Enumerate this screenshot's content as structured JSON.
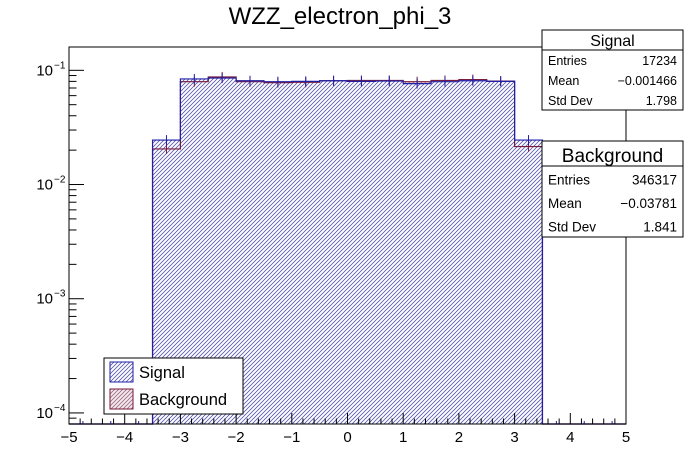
{
  "chart_data": {
    "type": "histogram",
    "title": "WZZ_electron_phi_3",
    "xlabel": "",
    "ylabel": "",
    "xlim": [
      -5,
      5
    ],
    "ylim": [
      8e-05,
      0.16
    ],
    "y_scale": "log",
    "bin_edges": [
      -5,
      -4.5,
      -4,
      -3.5,
      -3,
      -2.5,
      -2,
      -1.5,
      -1,
      -0.5,
      0,
      0.5,
      1,
      1.5,
      2,
      2.5,
      3,
      3.5,
      4,
      4.5,
      5
    ],
    "x_ticks": [
      -5,
      -4,
      -3,
      -2,
      -1,
      0,
      1,
      2,
      3,
      4,
      5
    ],
    "x_tick_labels": [
      "−5",
      "−4",
      "−3",
      "−2",
      "−1",
      "0",
      "1",
      "2",
      "3",
      "4",
      "5"
    ],
    "y_ticks": [
      0.0001,
      0.001,
      0.01,
      0.1
    ],
    "y_tick_labels": [
      {
        "base": "10",
        "exp": "−4"
      },
      {
        "base": "10",
        "exp": "−3"
      },
      {
        "base": "10",
        "exp": "−2"
      },
      {
        "base": "10",
        "exp": "−1"
      }
    ],
    "series": [
      {
        "name": "Signal",
        "color": "#1f1fa8",
        "fill": "#c8c8e8",
        "values": [
          0,
          0,
          0,
          0.0245,
          0.084,
          0.0855,
          0.081,
          0.0795,
          0.08,
          0.081,
          0.08,
          0.0805,
          0.0765,
          0.0795,
          0.081,
          0.08,
          0.0245,
          0,
          0,
          0
        ]
      },
      {
        "name": "Background",
        "color": "#7a1a3a",
        "fill": "#e8c8d4",
        "values": [
          0,
          0,
          0,
          0.0205,
          0.0795,
          0.0875,
          0.0795,
          0.078,
          0.0785,
          0.081,
          0.0815,
          0.0815,
          0.0795,
          0.0815,
          0.083,
          0.0805,
          0.0215,
          0,
          0,
          0
        ]
      }
    ],
    "legend": {
      "position": "bottom-left",
      "entries": [
        "Signal",
        "Background"
      ]
    },
    "stats_boxes": [
      {
        "title": "Signal",
        "rows": [
          {
            "label": "Entries",
            "value": "17234"
          },
          {
            "label": "Mean",
            "value": "−0.001466"
          },
          {
            "label": "Std Dev",
            "value": "1.798"
          }
        ]
      },
      {
        "title": "Background",
        "rows": [
          {
            "label": "Entries",
            "value": "346317"
          },
          {
            "label": "Mean",
            "value": "−0.03781"
          },
          {
            "label": "Std Dev",
            "value": "1.841"
          }
        ]
      }
    ]
  }
}
